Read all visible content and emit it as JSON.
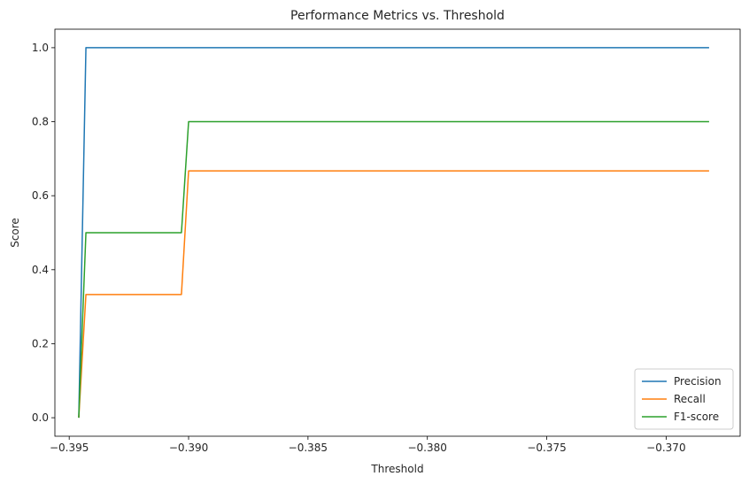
{
  "chart_data": {
    "type": "line",
    "title": "Performance Metrics vs. Threshold",
    "xlabel": "Threshold",
    "ylabel": "Score",
    "xlim": [
      -0.3956,
      -0.3669
    ],
    "ylim": [
      -0.05,
      1.05
    ],
    "xticks": [
      -0.395,
      -0.39,
      -0.385,
      -0.38,
      -0.375,
      -0.37
    ],
    "xtick_labels": [
      "−0.395",
      "−0.390",
      "−0.385",
      "−0.380",
      "−0.375",
      "−0.370"
    ],
    "yticks": [
      0.0,
      0.2,
      0.4,
      0.6,
      0.8,
      1.0
    ],
    "ytick_labels": [
      "0.0",
      "0.2",
      "0.4",
      "0.6",
      "0.8",
      "1.0"
    ],
    "grid": false,
    "legend_position": "lower-right",
    "series": [
      {
        "name": "Precision",
        "color": "#1f77b4",
        "x": [
          -0.3946,
          -0.3943,
          -0.3942,
          -0.3903,
          -0.39,
          -0.3682
        ],
        "y": [
          0.0,
          1.0,
          1.0,
          1.0,
          1.0,
          1.0
        ]
      },
      {
        "name": "Recall",
        "color": "#ff7f0e",
        "x": [
          -0.3946,
          -0.3943,
          -0.3942,
          -0.3903,
          -0.39,
          -0.3682
        ],
        "y": [
          0.0,
          0.333,
          0.333,
          0.333,
          0.667,
          0.667
        ]
      },
      {
        "name": "F1-score",
        "color": "#2ca02c",
        "x": [
          -0.3946,
          -0.3943,
          -0.3942,
          -0.3903,
          -0.39,
          -0.3682
        ],
        "y": [
          0.0,
          0.5,
          0.5,
          0.5,
          0.8,
          0.8
        ]
      }
    ]
  }
}
